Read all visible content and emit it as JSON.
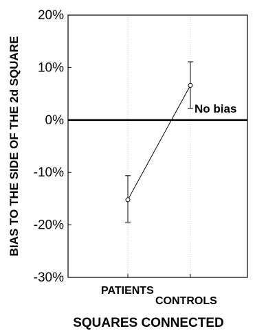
{
  "chart_data": {
    "type": "line",
    "xlabel": "SQUARES CONNECTED",
    "ylabel": "BIAS TO THE SIDE OF THE 2d SQUARE",
    "categories": [
      "PATIENTS",
      "CONTROLS"
    ],
    "series": [
      {
        "values": [
          -15.2,
          6.6
        ],
        "error_low": [
          -19.5,
          2.2
        ],
        "error_high": [
          -10.6,
          11.1
        ]
      }
    ],
    "ylim": [
      -30,
      20
    ],
    "yticks": [
      20,
      10,
      0,
      -10,
      -20,
      -30
    ],
    "ytick_labels": [
      "20%",
      "10%",
      "0%",
      "-10%",
      "-20%",
      "-30%"
    ],
    "reference_line": {
      "value": 0,
      "label": "No bias"
    },
    "grid": "vertical",
    "legend": "none"
  }
}
